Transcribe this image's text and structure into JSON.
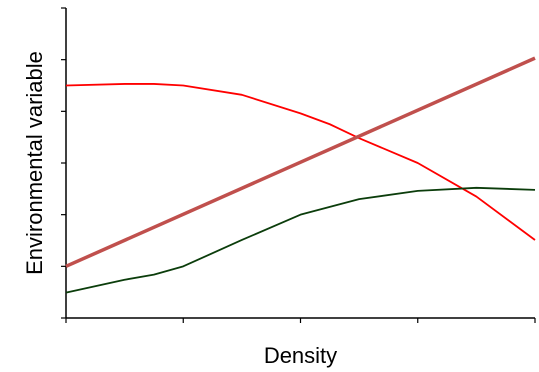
{
  "chart_data": {
    "type": "line",
    "xlabel": "Density",
    "ylabel": "Environmental variable",
    "xlim": [
      0,
      4
    ],
    "ylim": [
      0,
      6
    ],
    "x_ticks": [
      0,
      1,
      2,
      3,
      4
    ],
    "y_ticks": [
      0,
      1,
      2,
      3,
      4,
      5,
      6
    ],
    "tick_labels_shown": false,
    "grid": false,
    "legend": "none",
    "series": [
      {
        "color": "#ff0000",
        "x": [
          0,
          0.5,
          0.75,
          1,
          1.5,
          2,
          2.25,
          2.5,
          3,
          3.5,
          4
        ],
        "y": [
          4.5,
          4.53,
          4.53,
          4.5,
          4.32,
          3.96,
          3.75,
          3.48,
          3.0,
          2.35,
          1.51
        ]
      },
      {
        "color": "#c0504d",
        "x": [
          0,
          4
        ],
        "y": [
          1.0,
          5.03
        ]
      },
      {
        "color": "#0b3d0b",
        "x": [
          0,
          0.5,
          0.75,
          1,
          1.5,
          2,
          2.5,
          3,
          3.5,
          4
        ],
        "y": [
          0.49,
          0.74,
          0.84,
          1.0,
          1.51,
          2.0,
          2.3,
          2.46,
          2.52,
          2.48
        ]
      }
    ]
  }
}
